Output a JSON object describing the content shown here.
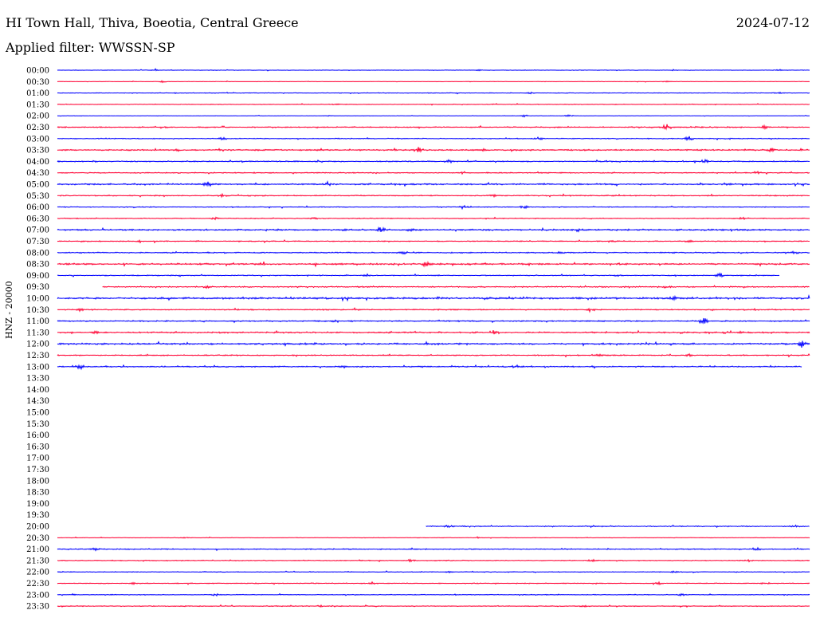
{
  "header": {
    "station": "HI Town Hall, Thiva, Boeotia, Central Greece",
    "date": "2024-07-12",
    "filter": "Applied filter: WWSSN-SP",
    "channel": "HNZ - 20000"
  },
  "colors": {
    "even_row": "#0000ff",
    "odd_row": "#ff0033"
  },
  "chart_data": {
    "type": "line",
    "title": "HI Town Hall, Thiva, Boeotia, Central Greece",
    "subtitle": "Applied filter: WWSSN-SP",
    "ylabel": "HNZ - 20000",
    "y_categories": [
      "00:00",
      "00:30",
      "01:00",
      "01:30",
      "02:00",
      "02:30",
      "03:00",
      "03:30",
      "04:00",
      "04:30",
      "05:00",
      "05:30",
      "06:00",
      "06:30",
      "07:00",
      "07:30",
      "08:00",
      "08:30",
      "09:00",
      "09:30",
      "10:00",
      "10:30",
      "11:00",
      "11:30",
      "12:00",
      "12:30",
      "13:00",
      "13:30",
      "14:00",
      "14:30",
      "15:00",
      "15:30",
      "16:00",
      "16:30",
      "17:00",
      "17:30",
      "18:00",
      "18:30",
      "19:00",
      "19:30",
      "20:00",
      "20:30",
      "21:00",
      "21:30",
      "22:00",
      "22:30",
      "23:00",
      "23:30"
    ],
    "x_range_minutes": [
      0,
      30
    ],
    "grid": false,
    "legend": "none",
    "series": [
      {
        "row": "00:00",
        "start": 0.0,
        "end": 1.0,
        "noise": 0.4,
        "events": [
          [
            0.13,
            0.8
          ],
          [
            0.56,
            0.8
          ],
          [
            0.82,
            0.8
          ],
          [
            0.96,
            0.8
          ]
        ]
      },
      {
        "row": "00:30",
        "start": 0.0,
        "end": 1.0,
        "noise": 0.3,
        "events": [
          [
            0.14,
            1.0
          ],
          [
            0.81,
            1.0
          ]
        ]
      },
      {
        "row": "01:00",
        "start": 0.0,
        "end": 1.0,
        "noise": 0.5,
        "events": [
          [
            0.63,
            0.8
          ],
          [
            0.96,
            1.0
          ]
        ]
      },
      {
        "row": "01:30",
        "start": 0.0,
        "end": 1.0,
        "noise": 0.5,
        "events": [
          [
            0.37,
            0.6
          ],
          [
            0.58,
            0.6
          ]
        ]
      },
      {
        "row": "02:00",
        "start": 0.0,
        "end": 1.0,
        "noise": 0.3,
        "events": [
          [
            0.36,
            1.2
          ],
          [
            0.62,
            1.6
          ],
          [
            0.68,
            1.2
          ]
        ]
      },
      {
        "row": "02:30",
        "start": 0.0,
        "end": 1.0,
        "noise": 0.8,
        "events": [
          [
            0.14,
            1.2
          ],
          [
            0.81,
            4.5
          ],
          [
            0.94,
            1.8
          ]
        ]
      },
      {
        "row": "03:00",
        "start": 0.0,
        "end": 1.0,
        "noise": 0.6,
        "events": [
          [
            0.22,
            2.2
          ],
          [
            0.64,
            1.5
          ],
          [
            0.84,
            3.0
          ]
        ]
      },
      {
        "row": "03:30",
        "start": 0.0,
        "end": 1.0,
        "noise": 1.0,
        "events": [
          [
            0.16,
            1.2
          ],
          [
            0.48,
            4.5
          ],
          [
            0.57,
            2.2
          ],
          [
            0.95,
            2.2
          ]
        ]
      },
      {
        "row": "04:00",
        "start": 0.0,
        "end": 1.0,
        "noise": 0.8,
        "events": [
          [
            0.52,
            2.5
          ],
          [
            0.86,
            2.8
          ]
        ]
      },
      {
        "row": "04:30",
        "start": 0.0,
        "end": 1.0,
        "noise": 0.7,
        "events": [
          [
            0.54,
            1.5
          ],
          [
            0.93,
            1.5
          ]
        ]
      },
      {
        "row": "05:00",
        "start": 0.0,
        "end": 1.0,
        "noise": 1.0,
        "events": [
          [
            0.2,
            3.0
          ],
          [
            0.36,
            1.5
          ],
          [
            0.89,
            1.8
          ]
        ]
      },
      {
        "row": "05:30",
        "start": 0.0,
        "end": 1.0,
        "noise": 0.8,
        "events": [
          [
            0.22,
            2.2
          ],
          [
            0.58,
            1.2
          ]
        ]
      },
      {
        "row": "06:00",
        "start": 0.0,
        "end": 1.0,
        "noise": 0.6,
        "events": [
          [
            0.54,
            3.0
          ],
          [
            0.62,
            3.0
          ]
        ]
      },
      {
        "row": "06:30",
        "start": 0.0,
        "end": 1.0,
        "noise": 0.6,
        "events": [
          [
            0.21,
            1.2
          ],
          [
            0.34,
            1.2
          ],
          [
            0.91,
            1.2
          ]
        ]
      },
      {
        "row": "07:00",
        "start": 0.0,
        "end": 1.0,
        "noise": 1.1,
        "events": [
          [
            0.43,
            4.0
          ],
          [
            0.47,
            1.8
          ],
          [
            0.38,
            1.5
          ]
        ]
      },
      {
        "row": "07:30",
        "start": 0.0,
        "end": 1.0,
        "noise": 0.7,
        "events": [
          [
            0.11,
            1.2
          ],
          [
            0.74,
            1.2
          ],
          [
            0.84,
            1.2
          ]
        ]
      },
      {
        "row": "08:00",
        "start": 0.0,
        "end": 1.0,
        "noise": 0.8,
        "events": [
          [
            0.46,
            1.5
          ],
          [
            0.67,
            1.5
          ],
          [
            0.98,
            1.5
          ]
        ]
      },
      {
        "row": "08:30",
        "start": 0.0,
        "end": 1.0,
        "noise": 1.1,
        "events": [
          [
            0.49,
            3.0
          ],
          [
            0.27,
            1.3
          ]
        ]
      },
      {
        "row": "09:00",
        "start": 0.0,
        "end": 0.96,
        "noise": 0.7,
        "events": [
          [
            0.41,
            1.5
          ],
          [
            0.88,
            2.5
          ]
        ]
      },
      {
        "row": "09:30",
        "start": 0.06,
        "end": 1.0,
        "noise": 0.8,
        "events": [
          [
            0.2,
            2.2
          ],
          [
            0.81,
            1.2
          ]
        ]
      },
      {
        "row": "10:00",
        "start": 0.0,
        "end": 1.0,
        "noise": 1.3,
        "events": [
          [
            0.57,
            1.2
          ],
          [
            0.82,
            1.3
          ]
        ]
      },
      {
        "row": "10:30",
        "start": 0.0,
        "end": 1.0,
        "noise": 0.8,
        "events": [
          [
            0.03,
            1.8
          ],
          [
            0.71,
            1.8
          ]
        ]
      },
      {
        "row": "11:00",
        "start": 0.0,
        "end": 1.0,
        "noise": 0.9,
        "events": [
          [
            0.86,
            3.5
          ],
          [
            0.37,
            1.3
          ]
        ]
      },
      {
        "row": "11:30",
        "start": 0.0,
        "end": 1.0,
        "noise": 1.0,
        "events": [
          [
            0.58,
            2.2
          ],
          [
            0.05,
            1.5
          ],
          [
            0.91,
            1.5
          ]
        ]
      },
      {
        "row": "12:00",
        "start": 0.0,
        "end": 1.0,
        "noise": 1.2,
        "events": [
          [
            0.99,
            4.5
          ],
          [
            0.34,
            1.2
          ]
        ]
      },
      {
        "row": "12:30",
        "start": 0.0,
        "end": 1.0,
        "noise": 0.8,
        "events": [
          [
            0.84,
            1.5
          ],
          [
            0.72,
            1.2
          ]
        ]
      },
      {
        "row": "13:00",
        "start": 0.0,
        "end": 0.99,
        "noise": 0.9,
        "events": [
          [
            0.03,
            2.2
          ],
          [
            0.61,
            3.5
          ],
          [
            0.38,
            1.3
          ]
        ]
      },
      {
        "row": "20:00",
        "start": 0.49,
        "end": 1.0,
        "noise": 0.7,
        "events": [
          [
            0.52,
            1.2
          ],
          [
            0.98,
            1.2
          ],
          [
            0.71,
            1.0
          ]
        ]
      },
      {
        "row": "20:30",
        "start": 0.0,
        "end": 1.0,
        "noise": 0.4,
        "events": [
          [
            0.17,
            0.8
          ],
          [
            0.56,
            0.8
          ]
        ]
      },
      {
        "row": "21:00",
        "start": 0.0,
        "end": 1.0,
        "noise": 0.7,
        "events": [
          [
            0.05,
            1.5
          ],
          [
            0.47,
            1.3
          ],
          [
            0.93,
            1.3
          ]
        ]
      },
      {
        "row": "21:30",
        "start": 0.0,
        "end": 1.0,
        "noise": 0.6,
        "events": [
          [
            0.47,
            1.5
          ],
          [
            0.71,
            1.3
          ],
          [
            0.92,
            1.5
          ]
        ]
      },
      {
        "row": "22:00",
        "start": 0.0,
        "end": 1.0,
        "noise": 0.5,
        "events": [
          [
            0.52,
            0.8
          ],
          [
            0.82,
            0.8
          ]
        ]
      },
      {
        "row": "22:30",
        "start": 0.0,
        "end": 1.0,
        "noise": 0.6,
        "events": [
          [
            0.1,
            1.5
          ],
          [
            0.42,
            1.3
          ],
          [
            0.8,
            1.3
          ],
          [
            0.94,
            1.5
          ]
        ]
      },
      {
        "row": "23:00",
        "start": 0.0,
        "end": 1.0,
        "noise": 0.5,
        "events": [
          [
            0.02,
            1.3
          ],
          [
            0.21,
            1.3
          ],
          [
            0.83,
            1.3
          ]
        ]
      },
      {
        "row": "23:30",
        "start": 0.0,
        "end": 1.0,
        "noise": 0.6,
        "events": [
          [
            0.35,
            0.8
          ],
          [
            0.7,
            0.8
          ]
        ]
      }
    ]
  }
}
